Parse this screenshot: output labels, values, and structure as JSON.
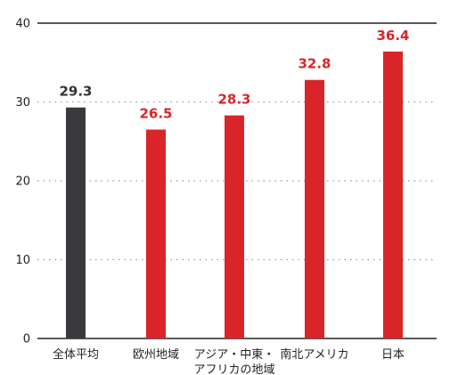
{
  "chart_data": {
    "type": "bar",
    "categories": [
      [
        "全体平均"
      ],
      [
        "欧州地域"
      ],
      [
        "アジア・中東・",
        "アフリカの地域"
      ],
      [
        "南北アメリカ"
      ],
      [
        "日本"
      ]
    ],
    "values": [
      29.3,
      26.5,
      28.3,
      32.8,
      36.4
    ],
    "value_labels": [
      "29.3",
      "26.5",
      "28.3",
      "32.8",
      "36.4"
    ],
    "bar_colors": [
      "#3a3a3e",
      "#d9252a",
      "#d9252a",
      "#d9252a",
      "#d9252a"
    ],
    "label_colors": [
      "#333333",
      "#d9252a",
      "#d9252a",
      "#d9252a",
      "#d9252a"
    ],
    "ylim": [
      0,
      40
    ],
    "yticks": [
      0,
      10,
      20,
      30,
      40
    ],
    "grid": true,
    "title": "",
    "xlabel": "",
    "ylabel": ""
  }
}
